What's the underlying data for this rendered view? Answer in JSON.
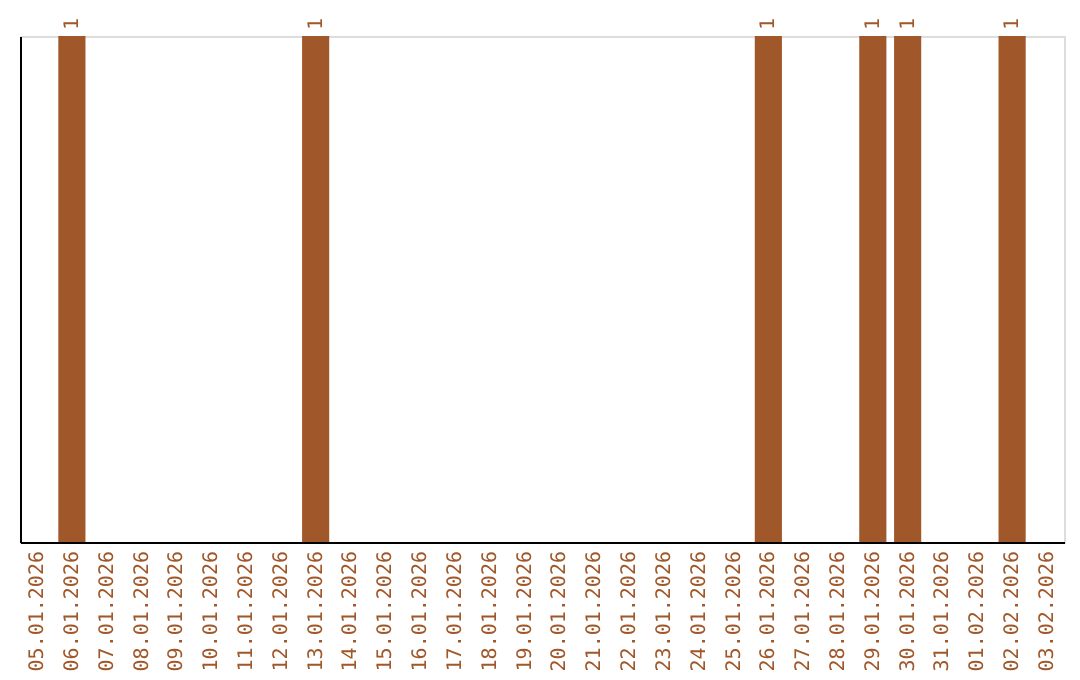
{
  "chart_data": {
    "type": "bar",
    "tick_labels": "x",
    "categories": [
      "05.01.2026",
      "06.01.2026",
      "07.01.2026",
      "08.01.2026",
      "09.01.2026",
      "10.01.2026",
      "11.01.2026",
      "12.01.2026",
      "13.01.2026",
      "14.01.2026",
      "15.01.2026",
      "16.01.2026",
      "17.01.2026",
      "18.01.2026",
      "19.01.2026",
      "20.01.2026",
      "21.01.2026",
      "22.01.2026",
      "23.01.2026",
      "24.01.2026",
      "25.01.2026",
      "26.01.2026",
      "27.01.2026",
      "28.01.2026",
      "29.01.2026",
      "30.01.2026",
      "31.01.2026",
      "01.02.2026",
      "02.02.2026",
      "03.02.2026"
    ],
    "values": [
      0,
      1,
      0,
      0,
      0,
      0,
      0,
      0,
      1,
      0,
      0,
      0,
      0,
      0,
      0,
      0,
      0,
      0,
      0,
      0,
      0,
      1,
      0,
      0,
      1,
      1,
      0,
      0,
      1,
      0
    ],
    "value_labels": [
      null,
      "1",
      null,
      null,
      null,
      null,
      null,
      null,
      "1",
      null,
      null,
      null,
      null,
      null,
      null,
      null,
      null,
      null,
      null,
      null,
      null,
      "1",
      null,
      null,
      "1",
      "1",
      null,
      null,
      "1",
      null
    ],
    "color": "#a0582a",
    "grid": false
  }
}
